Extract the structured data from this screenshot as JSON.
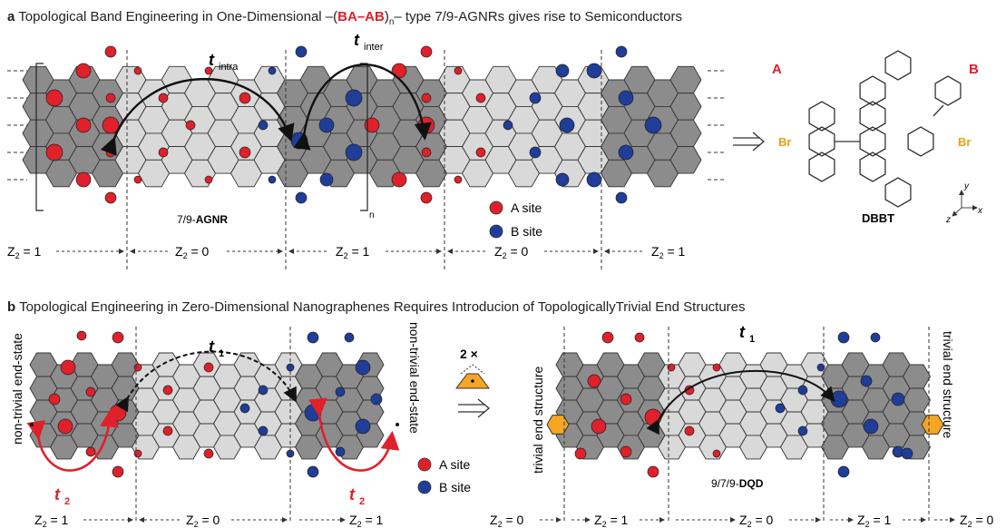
{
  "panel_a": {
    "label": "a",
    "title_pre": "Topological Band Engineering in One-Dimensional –(",
    "title_ba": "BA",
    "title_dash": "–",
    "title_ab": "AB",
    "title_post": ")",
    "title_sub": "n",
    "title_end": "– type 7/9-AGNRs gives rise to Semiconductors",
    "t_intra": "t",
    "t_intra_sub": "intra",
    "t_inter": "t",
    "t_inter_sub": "inter",
    "ribbon_label_pre": "7/9-",
    "ribbon_label_bold": "AGNR",
    "repeat_sub": "n",
    "legend_a": "A site",
    "legend_b": "B site",
    "z_labels": [
      "Z2 = 1",
      "Z2 = 0",
      "Z2 = 1",
      "Z2 = 0",
      "Z2 = 1"
    ],
    "precursor_a": "A",
    "precursor_b": "B",
    "br_left": "Br",
    "br_right": "Br",
    "precursor_name": "DBBT",
    "axis_y": "y",
    "axis_x": "x",
    "axis_z": "z"
  },
  "panel_b": {
    "label": "b",
    "title": "Topological Engineering in Zero-Dimensional Nanographenes Requires Introducion of TopologicallyTrivial End Structures",
    "t1_left": "t",
    "t1_left_sub": "1",
    "t1_right": "t",
    "t1_right_sub": "1",
    "t2": "t",
    "t2_sub": "2",
    "non_trivial_left": "non-trivial end-state",
    "non_trivial_right": "non-trivial end-state",
    "trivial_left": "trivial end structure",
    "trivial_right": "trivial end structure",
    "multiplier": "2 ×",
    "legend_a": "A site",
    "legend_b": "B site",
    "dqd_pre": "9/7/9-",
    "dqd_bold": "DQD",
    "z_labels_left": [
      "Z2 = 1",
      "Z2 = 0",
      "Z2 = 1"
    ],
    "z_labels_right": [
      "Z2 = 0",
      "Z2 = 1",
      "Z2 = 0",
      "Z2 = 1",
      "Z2 = 0"
    ]
  },
  "colors": {
    "a_site": "#e0202a",
    "b_site": "#1f3d99",
    "dark_hex": "#8c8c8c",
    "light_hex": "#d9d9d9",
    "bromine": "#f39c12",
    "end_cap": "#f5a623"
  }
}
